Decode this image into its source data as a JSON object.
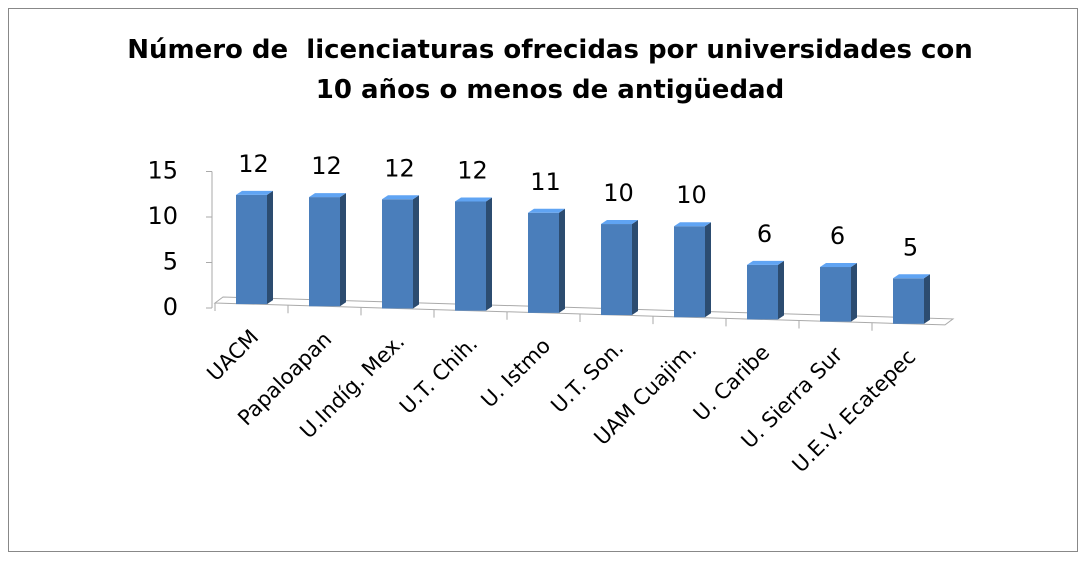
{
  "chart_data": {
    "type": "bar",
    "title": "Número de  licenciaturas ofrecidas por universidades con 10 años o menos de antigüedad",
    "categories": [
      "UACM",
      "Papaloapan",
      "U.Indíg. Mex.",
      "U.T. Chih.",
      "U. Istmo",
      "U.T. Son.",
      "UAM Cuajim.",
      "U. Caribe",
      "U. Sierra Sur",
      "U.E.V. Ecatepec"
    ],
    "values": [
      12,
      12,
      12,
      12,
      11,
      10,
      10,
      6,
      6,
      5
    ],
    "color": "#4a7ebb",
    "ylim": [
      0,
      15
    ],
    "yticks": [
      0,
      5,
      10,
      15
    ]
  }
}
